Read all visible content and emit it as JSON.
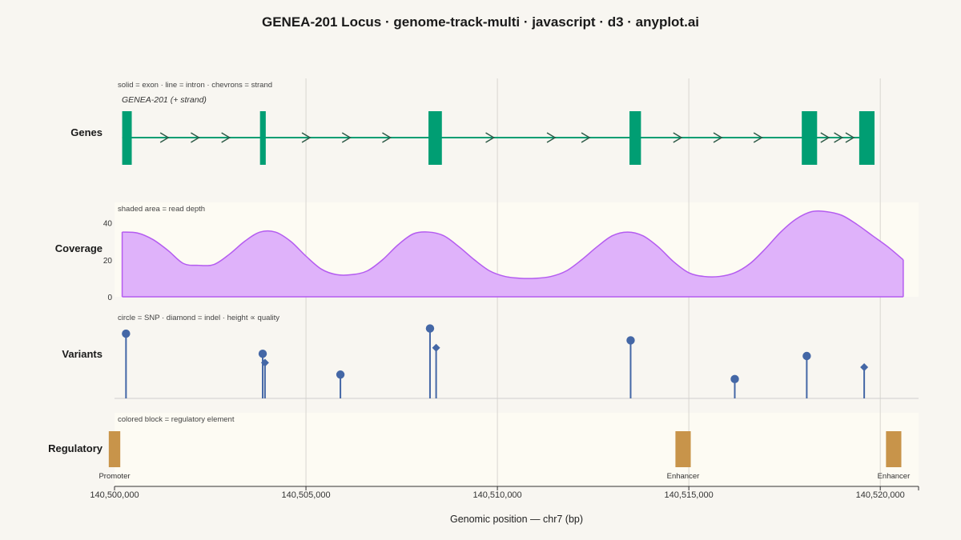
{
  "title": "GENEA-201 Locus · genome-track-multi · javascript · d3 · anyplot.ai",
  "chart_data": {
    "type": "genome-track",
    "x_domain": [
      140500000,
      140521000
    ],
    "x_ticks": [
      140500000,
      140505000,
      140510000,
      140515000,
      140520000
    ],
    "x_tick_labels": [
      "140,500,000",
      "140,505,000",
      "140,510,000",
      "140,515,000",
      "140,520,000"
    ],
    "xlabel": "Genomic position — chr7 (bp)",
    "tracks": {
      "genes": {
        "label": "Genes",
        "note": "solid = exon · line = intron · chevrons = strand",
        "gene_name": "GENEA-201 (+ strand)",
        "strand": "+",
        "exons": [
          {
            "start": 140500200,
            "end": 140500450
          },
          {
            "start": 140503800,
            "end": 140503950
          },
          {
            "start": 140508200,
            "end": 140508550
          },
          {
            "start": 140513450,
            "end": 140513750
          },
          {
            "start": 140517950,
            "end": 140518350
          },
          {
            "start": 140519450,
            "end": 140519850
          }
        ],
        "chevrons": [
          140501300,
          140502100,
          140502900,
          140505000,
          140506050,
          140507100,
          140509800,
          140511400,
          140512300,
          140514700,
          140515750,
          140516800,
          140518550,
          140518900,
          140519200
        ],
        "color": "#009e73"
      },
      "coverage": {
        "label": "Coverage",
        "note": "shaded area = read depth",
        "ylim": [
          0,
          48
        ],
        "yticks": [
          0,
          20,
          40
        ],
        "x": [
          140500200,
          140500600,
          140501000,
          140501400,
          140501800,
          140502200,
          140502600,
          140503000,
          140503400,
          140503800,
          140504200,
          140504600,
          140505000,
          140505400,
          140505800,
          140506200,
          140506600,
          140507000,
          140507400,
          140507800,
          140508200,
          140508600,
          140509000,
          140509400,
          140509800,
          140510200,
          140510600,
          140511000,
          140511400,
          140511800,
          140512200,
          140512600,
          140513000,
          140513400,
          140513800,
          140514200,
          140514600,
          140515000,
          140515400,
          140515800,
          140516200,
          140516600,
          140517000,
          140517400,
          140517800,
          140518200,
          140518600,
          140519000,
          140519400,
          140519800,
          140520200,
          140520600
        ],
        "values": [
          35,
          34.5,
          31,
          25,
          18,
          17,
          17.5,
          23,
          30,
          35,
          35,
          30,
          22,
          15,
          12,
          12,
          14,
          20,
          28,
          34,
          35,
          33,
          27,
          20,
          14,
          11,
          10,
          10,
          11,
          14,
          20,
          27,
          33,
          35,
          33,
          27,
          19,
          13,
          11,
          11,
          13,
          18,
          26,
          35,
          42,
          46,
          46,
          44,
          39,
          33,
          27,
          20
        ],
        "color": "#b45cf0",
        "fill": "#dfb2fa"
      },
      "variants": {
        "label": "Variants",
        "note": "circle = SNP · diamond = indel · height ∝ quality",
        "ylim": [
          0,
          100
        ],
        "items": [
          {
            "pos": 140500300,
            "type": "SNP",
            "quality": 87
          },
          {
            "pos": 140503870,
            "type": "SNP",
            "quality": 60
          },
          {
            "pos": 140503930,
            "type": "indel",
            "quality": 48
          },
          {
            "pos": 140505900,
            "type": "SNP",
            "quality": 32
          },
          {
            "pos": 140508240,
            "type": "SNP",
            "quality": 94
          },
          {
            "pos": 140508400,
            "type": "indel",
            "quality": 68
          },
          {
            "pos": 140513480,
            "type": "SNP",
            "quality": 78
          },
          {
            "pos": 140516200,
            "type": "SNP",
            "quality": 26
          },
          {
            "pos": 140518080,
            "type": "SNP",
            "quality": 57
          },
          {
            "pos": 140519580,
            "type": "indel",
            "quality": 42
          }
        ],
        "color": "#4467a6"
      },
      "regulatory": {
        "label": "Regulatory",
        "note": "colored block = regulatory element",
        "elements": [
          {
            "start": 140499850,
            "end": 140500150,
            "label": "Promoter"
          },
          {
            "start": 140514650,
            "end": 140515050,
            "label": "Enhancer"
          },
          {
            "start": 140520150,
            "end": 140520550,
            "label": "Enhancer"
          }
        ],
        "color": "#c8944a"
      }
    },
    "grid": true
  }
}
